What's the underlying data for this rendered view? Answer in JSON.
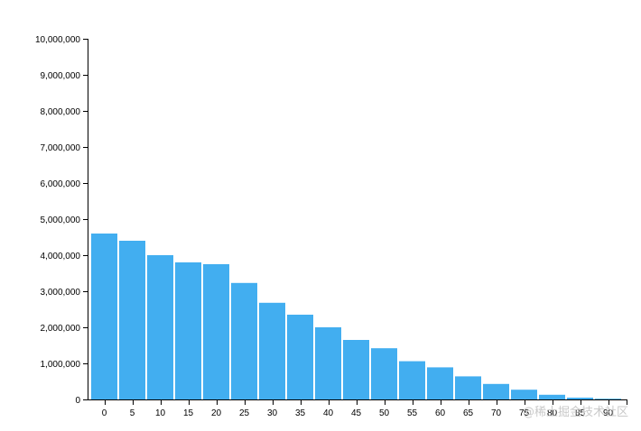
{
  "chart_data": {
    "type": "bar",
    "categories": [
      "0",
      "5",
      "10",
      "15",
      "20",
      "25",
      "30",
      "35",
      "40",
      "45",
      "50",
      "55",
      "60",
      "65",
      "70",
      "75",
      "80",
      "85",
      "90"
    ],
    "values": [
      4600000,
      4400000,
      4000000,
      3800000,
      3750000,
      3230000,
      2680000,
      2350000,
      2000000,
      1650000,
      1420000,
      1060000,
      890000,
      640000,
      430000,
      270000,
      130000,
      50000,
      20000
    ],
    "ylim": [
      0,
      10000000
    ],
    "yticks": [
      0,
      1000000,
      2000000,
      3000000,
      4000000,
      5000000,
      6000000,
      7000000,
      8000000,
      9000000,
      10000000
    ],
    "ytick_labels": [
      "0",
      "1,000,000",
      "2,000,000",
      "3,000,000",
      "4,000,000",
      "5,000,000",
      "6,000,000",
      "7,000,000",
      "8,000,000",
      "9,000,000",
      "10,000,000"
    ],
    "bar_color": "#42aef0",
    "grid": false,
    "title": "",
    "xlabel": "",
    "ylabel": ""
  },
  "watermark": "@稀土掘金技术社区"
}
